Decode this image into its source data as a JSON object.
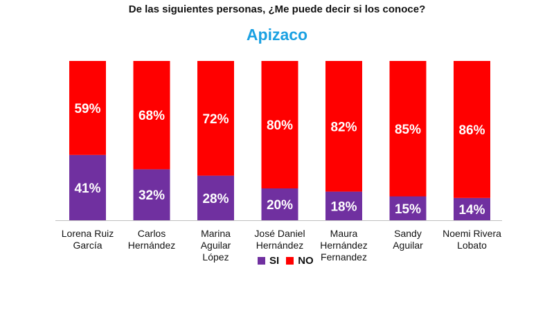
{
  "question": "De las siguientes personas, ¿Me puede decir si los conoce?",
  "chart_data": {
    "type": "bar",
    "stacked": true,
    "title": "Apizaco",
    "categories": [
      [
        "Lorena Ruiz",
        "García"
      ],
      [
        "Carlos",
        "Hernández"
      ],
      [
        "Marina",
        "Aguilar",
        "López"
      ],
      [
        "José Daniel",
        "Hernández"
      ],
      [
        "Maura",
        "Hernández",
        "Fernandez"
      ],
      [
        "Sandy",
        "Aguilar"
      ],
      [
        "Noemi Rivera",
        "Lobato"
      ]
    ],
    "series": [
      {
        "name": "SI",
        "color": "#7030A0",
        "values": [
          41,
          32,
          28,
          20,
          18,
          15,
          14
        ],
        "labels": [
          "41%",
          "32%",
          "28%",
          "20%",
          "18%",
          "15%",
          "14%"
        ]
      },
      {
        "name": "NO",
        "color": "#FF0000",
        "values": [
          59,
          68,
          72,
          80,
          82,
          85,
          86
        ],
        "labels": [
          "59%",
          "68%",
          "72%",
          "80%",
          "82%",
          "85%",
          "86%"
        ]
      }
    ],
    "ylim": [
      0,
      100
    ],
    "legend_position": "bottom",
    "title_color": "#1BA1E2"
  }
}
